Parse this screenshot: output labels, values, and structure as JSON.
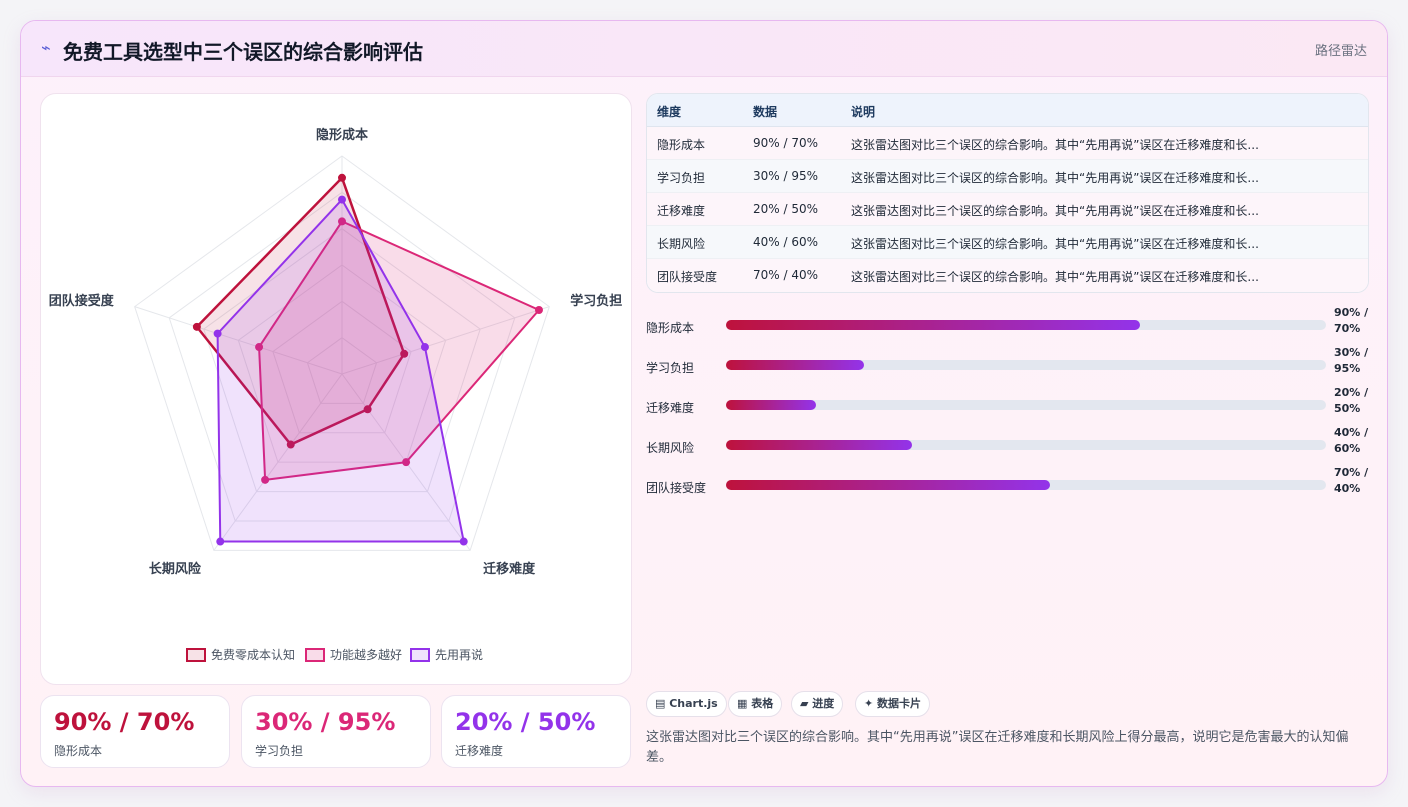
{
  "header": {
    "title": "免费工具选型中三个误区的综合影响评估",
    "badge": "路径雷达",
    "icon": "bolt-icon"
  },
  "chart_data": {
    "type": "radar",
    "axes": [
      "隐形成本",
      "学习负担",
      "迁移难度",
      "长期风险",
      "团队接受度"
    ],
    "rmax": 100,
    "series": [
      {
        "name": "免费零成本认知",
        "values": [
          90,
          30,
          20,
          40,
          70
        ],
        "color": "#be123c"
      },
      {
        "name": "功能越多越好",
        "values": [
          70,
          95,
          50,
          60,
          40
        ],
        "color": "#db2777"
      },
      {
        "name": "先用再说",
        "values": [
          80,
          40,
          95,
          95,
          60
        ],
        "color": "#9333ea"
      }
    ]
  },
  "stats": [
    {
      "value": "90% / 70%",
      "label": "隐形成本",
      "color": "#be123c"
    },
    {
      "value": "30% / 95%",
      "label": "学习负担",
      "color": "#db2777"
    },
    {
      "value": "20% / 50%",
      "label": "迁移难度",
      "color": "#9333ea"
    }
  ],
  "table": {
    "headers": [
      "维度",
      "数据",
      "说明"
    ],
    "rows": [
      {
        "dim": "隐形成本",
        "data": "90% / 70%",
        "desc": "这张雷达图对比三个误区的综合影响。其中“先用再说”误区在迁移难度和长..."
      },
      {
        "dim": "学习负担",
        "data": "30% / 95%",
        "desc": "这张雷达图对比三个误区的综合影响。其中“先用再说”误区在迁移难度和长..."
      },
      {
        "dim": "迁移难度",
        "data": "20% / 50%",
        "desc": "这张雷达图对比三个误区的综合影响。其中“先用再说”误区在迁移难度和长..."
      },
      {
        "dim": "长期风险",
        "data": "40% / 60%",
        "desc": "这张雷达图对比三个误区的综合影响。其中“先用再说”误区在迁移难度和长..."
      },
      {
        "dim": "团队接受度",
        "data": "70% / 40%",
        "desc": "这张雷达图对比三个误区的综合影响。其中“先用再说”误区在迁移难度和长..."
      }
    ]
  },
  "bars": [
    {
      "label": "隐形成本",
      "value_text": "90% / 70%",
      "fill": 0.69
    },
    {
      "label": "学习负担",
      "value_text": "30% / 95%",
      "fill": 0.23
    },
    {
      "label": "迁移难度",
      "value_text": "20% / 50%",
      "fill": 0.15
    },
    {
      "label": "长期风险",
      "value_text": "40% / 60%",
      "fill": 0.31
    },
    {
      "label": "团队接受度",
      "value_text": "70% / 40%",
      "fill": 0.54
    }
  ],
  "pills": [
    "▤ Chart.js",
    "▦ 表格",
    "▰ 进度",
    "✦ 数据卡片"
  ],
  "summary": "这张雷达图对比三个误区的综合影响。其中“先用再说”误区在迁移难度和长期风险上得分最高，说明它是危害最大的认知偏差。"
}
